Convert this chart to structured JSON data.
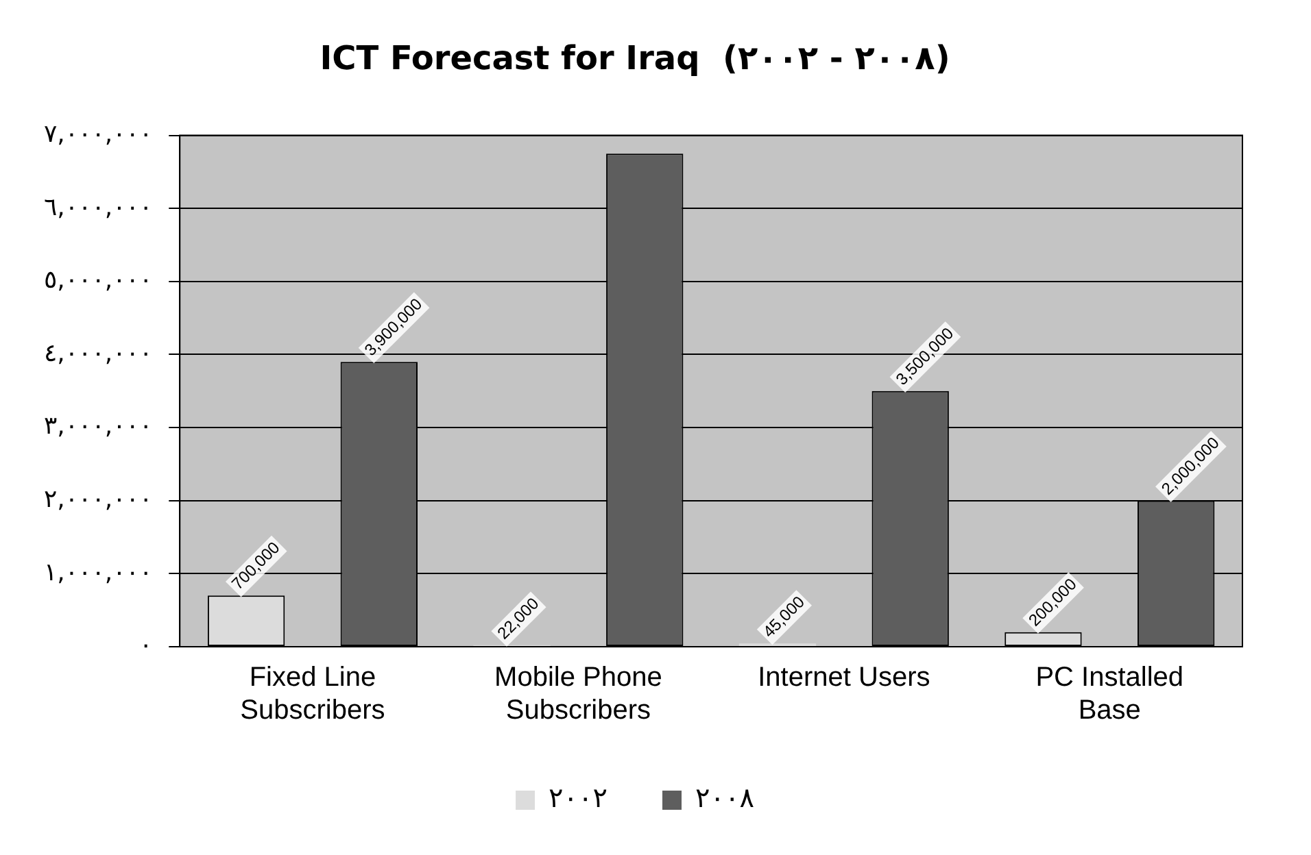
{
  "chart_data": {
    "type": "bar",
    "title": "ICT Forecast for Iraq  (٢٠٠٢ - ٢٠٠٨)",
    "categories": [
      "Fixed Line Subscribers",
      "Mobile Phone Subscribers",
      "Internet Users",
      "PC Installed Base"
    ],
    "series": [
      {
        "name": "٢٠٠٢",
        "color": "#dcdcdc",
        "values": [
          700000,
          22000,
          45000,
          200000
        ],
        "value_labels": [
          "700,000",
          "22,000",
          "45,000",
          "200,000"
        ]
      },
      {
        "name": "٢٠٠٨",
        "color": "#5e5e5e",
        "values": [
          3900000,
          6750000,
          3500000,
          2000000
        ],
        "value_labels": [
          "3,900,000",
          null,
          "3,500,000",
          "2,000,000"
        ]
      }
    ],
    "ylim": [
      0,
      7000000
    ],
    "yticks": [
      {
        "value": 0,
        "label": "٠"
      },
      {
        "value": 1000000,
        "label": "١,٠٠٠,٠٠٠"
      },
      {
        "value": 2000000,
        "label": "٢,٠٠٠,٠٠٠"
      },
      {
        "value": 3000000,
        "label": "٣,٠٠٠,٠٠٠"
      },
      {
        "value": 4000000,
        "label": "٤,٠٠٠,٠٠٠"
      },
      {
        "value": 5000000,
        "label": "٥,٠٠٠,٠٠٠"
      },
      {
        "value": 6000000,
        "label": "٦,٠٠٠,٠٠٠"
      },
      {
        "value": 7000000,
        "label": "٧,٠٠٠,٠٠٠"
      }
    ],
    "grid": "y",
    "legend": "bottom"
  }
}
